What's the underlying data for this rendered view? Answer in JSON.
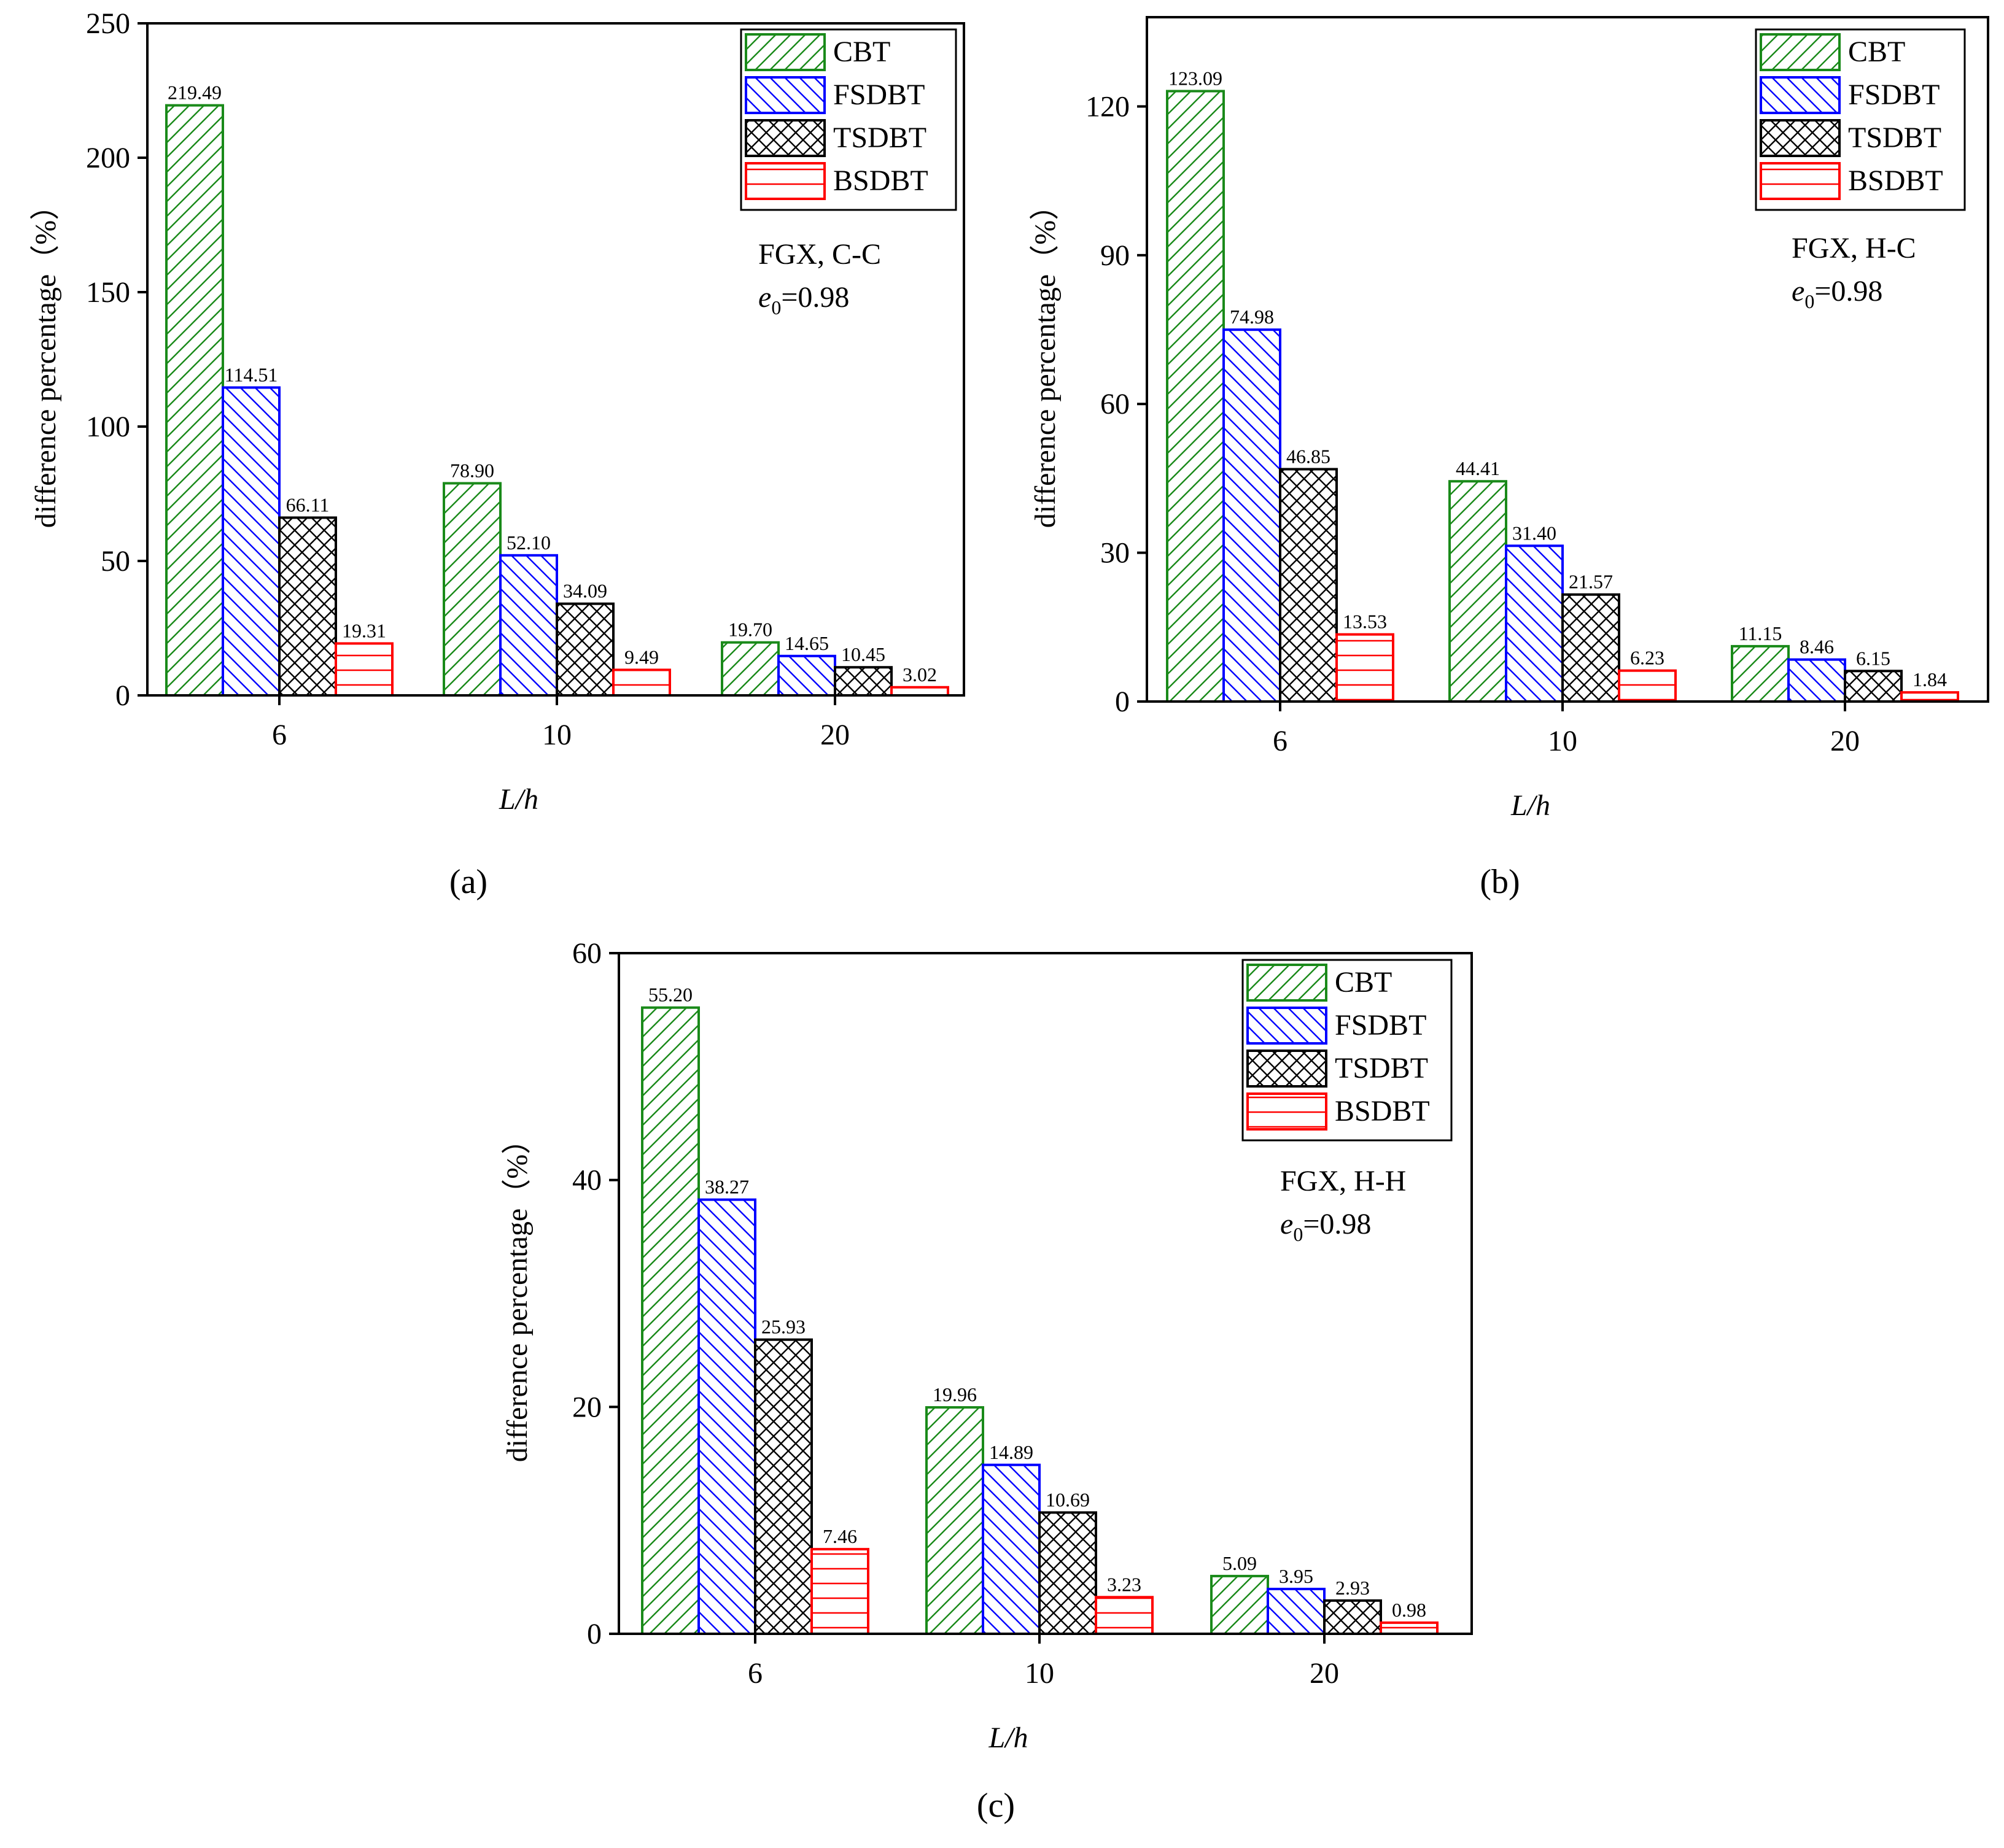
{
  "series_names": [
    "CBT",
    "FSDBT",
    "TSDBT",
    "BSDBT"
  ],
  "series_colors": [
    "#1a8a1a",
    "#0000ff",
    "#000000",
    "#ff0000"
  ],
  "series_patterns": [
    "diagonal-up",
    "diagonal-down",
    "crosshatch",
    "horizontal"
  ],
  "chart_data": [
    {
      "type": "bar",
      "panel_label": "(a)",
      "categories": [
        "6",
        "10",
        "20"
      ],
      "series": [
        {
          "name": "CBT",
          "values": [
            219.49,
            78.9,
            19.7
          ],
          "labels": [
            "219.49",
            "78.90",
            "19.70"
          ]
        },
        {
          "name": "FSDBT",
          "values": [
            114.51,
            52.1,
            14.65
          ],
          "labels": [
            "114.51",
            "52.10",
            "14.65"
          ]
        },
        {
          "name": "TSDBT",
          "values": [
            66.11,
            34.09,
            10.45
          ],
          "labels": [
            "66.11",
            "34.09",
            "10.45"
          ]
        },
        {
          "name": "BSDBT",
          "values": [
            19.31,
            9.49,
            3.02
          ],
          "labels": [
            "19.31",
            "9.49",
            "3.02"
          ]
        }
      ],
      "xlabel": "L/h",
      "ylabel": "difference percentage（%）",
      "ylim": [
        0,
        250
      ],
      "yticks": [
        0,
        50,
        100,
        150,
        200,
        250
      ],
      "annotation": {
        "line1": "FGX, C-C",
        "line2_var": "e",
        "line2_sub": "0",
        "line2_rest": "=0.98"
      },
      "legend_position": "top-right"
    },
    {
      "type": "bar",
      "panel_label": "(b)",
      "categories": [
        "6",
        "10",
        "20"
      ],
      "series": [
        {
          "name": "CBT",
          "values": [
            123.09,
            44.41,
            11.15
          ],
          "labels": [
            "123.09",
            "44.41",
            "11.15"
          ]
        },
        {
          "name": "FSDBT",
          "values": [
            74.98,
            31.4,
            8.46
          ],
          "labels": [
            "74.98",
            "31.40",
            "8.46"
          ]
        },
        {
          "name": "TSDBT",
          "values": [
            46.85,
            21.57,
            6.15
          ],
          "labels": [
            "46.85",
            "21.57",
            "6.15"
          ]
        },
        {
          "name": "BSDBT",
          "values": [
            13.53,
            6.23,
            1.84
          ],
          "labels": [
            "13.53",
            "6.23",
            "1.84"
          ]
        }
      ],
      "xlabel": "L/h",
      "ylabel": "difference percentage（%）",
      "ylim": [
        0,
        138
      ],
      "yticks": [
        0,
        30,
        60,
        90,
        120
      ],
      "annotation": {
        "line1": "FGX, H-C",
        "line2_var": "e",
        "line2_sub": "0",
        "line2_rest": "=0.98"
      },
      "legend_position": "top-right"
    },
    {
      "type": "bar",
      "panel_label": "(c)",
      "categories": [
        "6",
        "10",
        "20"
      ],
      "series": [
        {
          "name": "CBT",
          "values": [
            55.2,
            19.96,
            5.09
          ],
          "labels": [
            "55.20",
            "19.96",
            "5.09"
          ]
        },
        {
          "name": "FSDBT",
          "values": [
            38.27,
            14.89,
            3.95
          ],
          "labels": [
            "38.27",
            "14.89",
            "3.95"
          ]
        },
        {
          "name": "TSDBT",
          "values": [
            25.93,
            10.69,
            2.93
          ],
          "labels": [
            "25.93",
            "10.69",
            "2.93"
          ]
        },
        {
          "name": "BSDBT",
          "values": [
            7.46,
            3.23,
            0.98
          ],
          "labels": [
            "7.46",
            "3.23",
            "0.98"
          ]
        }
      ],
      "xlabel": "L/h",
      "ylabel": "difference percentage（%）",
      "ylim": [
        0,
        60
      ],
      "yticks": [
        0,
        20,
        40,
        60
      ],
      "annotation": {
        "line1": "FGX, H-H",
        "line2_var": "e",
        "line2_sub": "0",
        "line2_rest": "=0.98"
      },
      "legend_position": "top-right"
    }
  ]
}
